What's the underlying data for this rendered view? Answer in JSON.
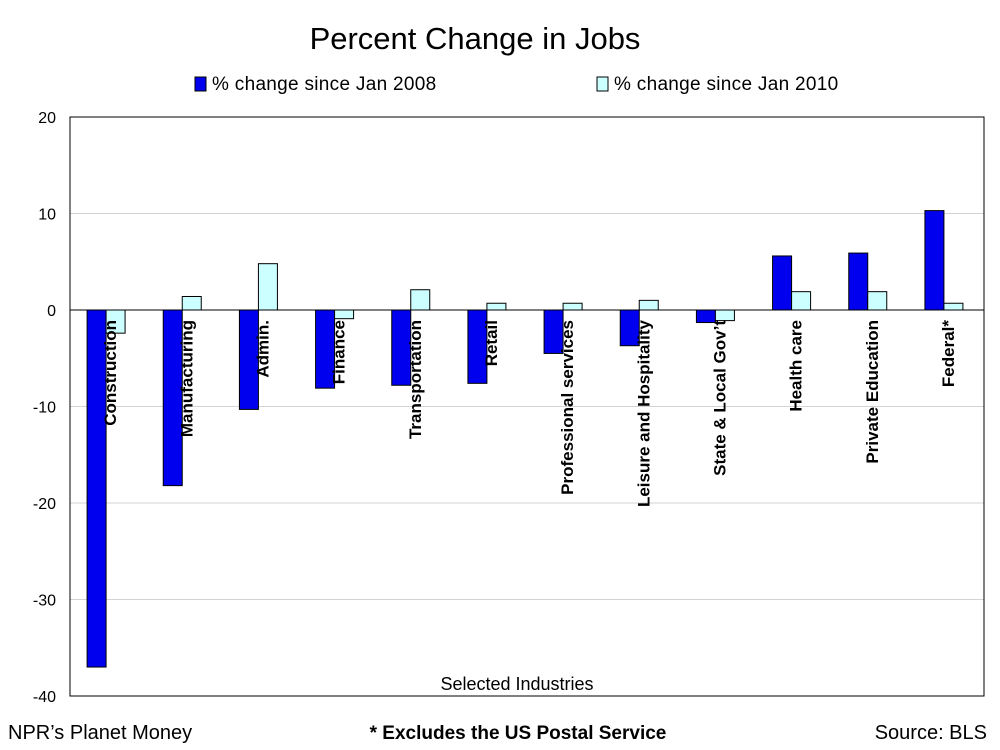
{
  "colors": {
    "series_2008": "#0000ee",
    "series_2010": "#ccffff",
    "bar_stroke": "#000000",
    "gridline": "#d3d3d3"
  },
  "footer": {
    "left": "NPR’s Planet Money",
    "center": "* Excludes the US Postal Service",
    "right": "Source: BLS"
  },
  "chart_data": {
    "type": "bar",
    "title": "Percent Change in Jobs",
    "xlabel": "Selected Industries",
    "ylabel": "",
    "ylim": [
      -40,
      20
    ],
    "yticks": [
      20,
      10,
      0,
      -10,
      -20,
      -30,
      -40
    ],
    "grid": true,
    "legend_position": "top",
    "categories": [
      "Construction",
      "Manufacturing",
      "Admin.",
      "Finance",
      "Transportation",
      "Retail",
      "Professional services",
      "Leisure and Hospitality",
      "State & Local Gov’t",
      "Health care",
      "Private Education",
      "Federal*"
    ],
    "series": [
      {
        "name": "% change since Jan 2008",
        "values": [
          -37.0,
          -18.2,
          -10.3,
          -8.1,
          -7.8,
          -7.6,
          -4.5,
          -3.7,
          -1.3,
          5.6,
          5.9,
          10.3
        ]
      },
      {
        "name": "% change since Jan 2010",
        "values": [
          -2.4,
          1.4,
          4.8,
          -0.9,
          2.1,
          0.7,
          0.7,
          1.0,
          -1.1,
          1.9,
          1.9,
          0.7
        ]
      }
    ]
  }
}
